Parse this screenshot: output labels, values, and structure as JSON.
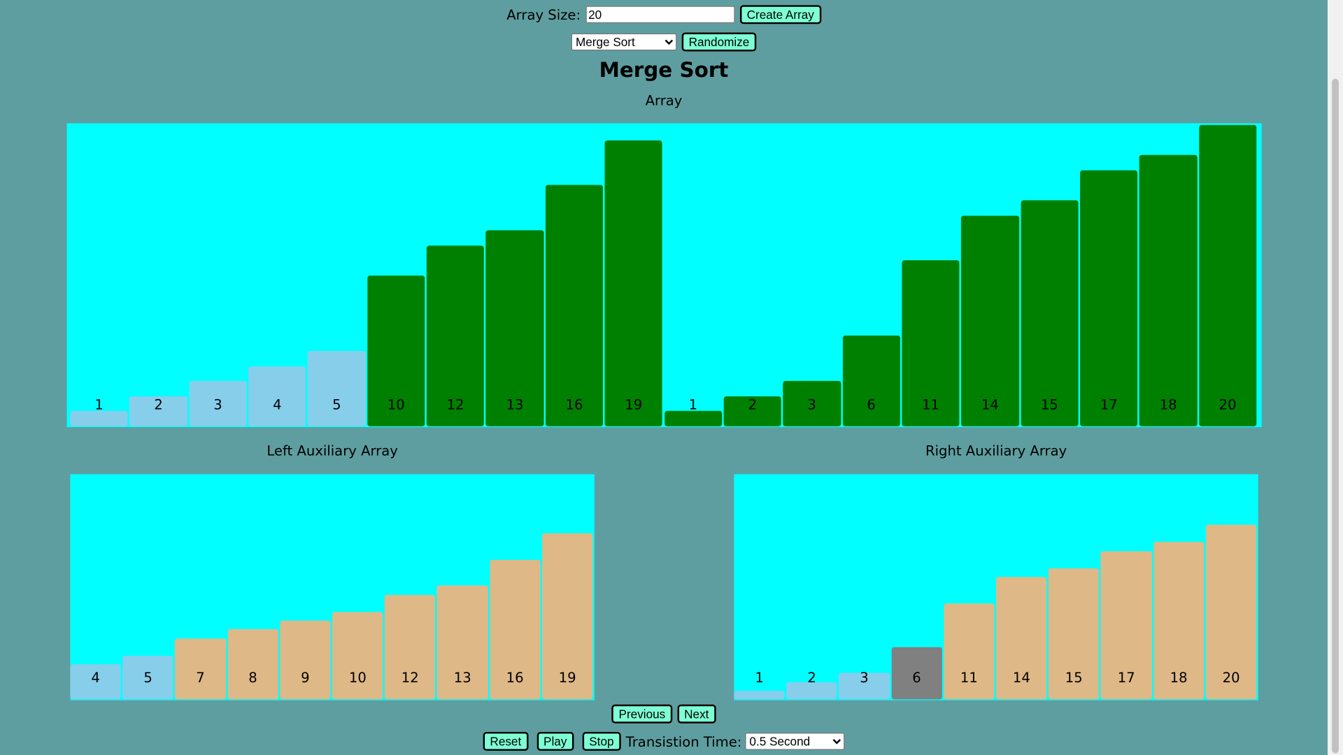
{
  "controls": {
    "array_size_label": "Array Size:",
    "array_size_value": "20",
    "create_array_label": "Create Array",
    "algorithm_selected": "Merge Sort",
    "randomize_label": "Randomize"
  },
  "title": "Merge Sort",
  "main_array": {
    "caption": "Array",
    "max_value": 20,
    "bars": [
      {
        "value": 1,
        "state": "light"
      },
      {
        "value": 2,
        "state": "light"
      },
      {
        "value": 3,
        "state": "light"
      },
      {
        "value": 4,
        "state": "light"
      },
      {
        "value": 5,
        "state": "light"
      },
      {
        "value": 10,
        "state": "green"
      },
      {
        "value": 12,
        "state": "green"
      },
      {
        "value": 13,
        "state": "green"
      },
      {
        "value": 16,
        "state": "green"
      },
      {
        "value": 19,
        "state": "green"
      },
      {
        "value": 1,
        "state": "green"
      },
      {
        "value": 2,
        "state": "green"
      },
      {
        "value": 3,
        "state": "green"
      },
      {
        "value": 6,
        "state": "green"
      },
      {
        "value": 11,
        "state": "green"
      },
      {
        "value": 14,
        "state": "green"
      },
      {
        "value": 15,
        "state": "green"
      },
      {
        "value": 17,
        "state": "green"
      },
      {
        "value": 18,
        "state": "green"
      },
      {
        "value": 20,
        "state": "green"
      }
    ]
  },
  "left_aux": {
    "caption": "Left Auxiliary Array",
    "bars": [
      {
        "value": 4,
        "state": "light"
      },
      {
        "value": 5,
        "state": "light"
      },
      {
        "value": 7,
        "state": "tan"
      },
      {
        "value": 8,
        "state": "tan"
      },
      {
        "value": 9,
        "state": "tan"
      },
      {
        "value": 10,
        "state": "tan"
      },
      {
        "value": 12,
        "state": "tan"
      },
      {
        "value": 13,
        "state": "tan"
      },
      {
        "value": 16,
        "state": "tan"
      },
      {
        "value": 19,
        "state": "tan"
      }
    ]
  },
  "right_aux": {
    "caption": "Right Auxiliary Array",
    "bars": [
      {
        "value": 1,
        "state": "light"
      },
      {
        "value": 2,
        "state": "light"
      },
      {
        "value": 3,
        "state": "light"
      },
      {
        "value": 6,
        "state": "gray"
      },
      {
        "value": 11,
        "state": "tan"
      },
      {
        "value": 14,
        "state": "tan"
      },
      {
        "value": 15,
        "state": "tan"
      },
      {
        "value": 17,
        "state": "tan"
      },
      {
        "value": 18,
        "state": "tan"
      },
      {
        "value": 20,
        "state": "tan"
      }
    ]
  },
  "colors": {
    "background": "#5f9ea0",
    "panel": "#00ffff",
    "light": "#87ceeb",
    "green": "#008000",
    "tan": "#deb887",
    "gray": "#808080",
    "button": "#7fffd4"
  },
  "nav": {
    "previous_label": "Previous",
    "next_label": "Next"
  },
  "playback": {
    "reset_label": "Reset",
    "play_label": "Play",
    "stop_label": "Stop",
    "transition_label": "Transistion Time:",
    "transition_selected": "0.5 Second"
  }
}
